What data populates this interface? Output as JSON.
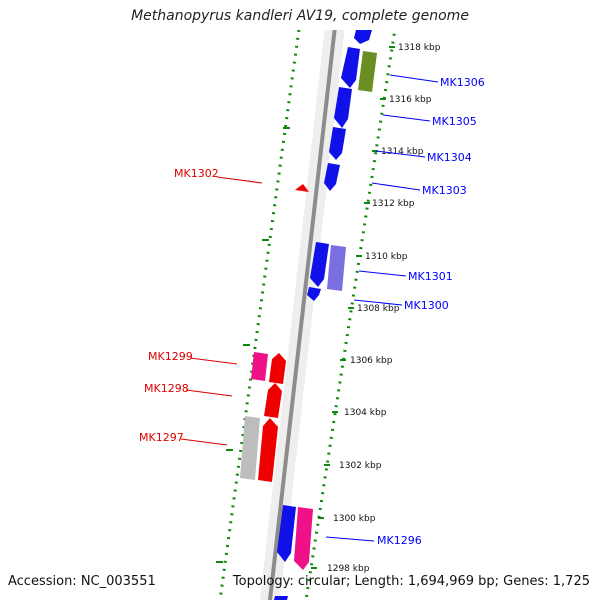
{
  "title": "Methanopyrus kandleri AV19, complete genome",
  "footer": {
    "accession": "Accession: NC_003551",
    "summary": "Topology: circular; Length: 1,694,969 bp; Genes: 1,725"
  },
  "ticks": [
    {
      "label": "1318 kbp",
      "kbp": 1318
    },
    {
      "label": "1316 kbp",
      "kbp": 1316
    },
    {
      "label": "1314 kbp",
      "kbp": 1314
    },
    {
      "label": "1312 kbp",
      "kbp": 1312
    },
    {
      "label": "1310 kbp",
      "kbp": 1310
    },
    {
      "label": "1308 kbp",
      "kbp": 1308
    },
    {
      "label": "1306 kbp",
      "kbp": 1306
    },
    {
      "label": "1304 kbp",
      "kbp": 1304
    },
    {
      "label": "1302 kbp",
      "kbp": 1302
    },
    {
      "label": "1300 kbp",
      "kbp": 1300
    },
    {
      "label": "1298 kbp",
      "kbp": 1298
    }
  ],
  "genes": [
    {
      "name": "MK1306",
      "color": "#0000ff"
    },
    {
      "name": "MK1305",
      "color": "#0000ff"
    },
    {
      "name": "MK1304",
      "color": "#0000ff"
    },
    {
      "name": "MK1303",
      "color": "#0000ff"
    },
    {
      "name": "MK1302",
      "color": "#dd0000"
    },
    {
      "name": "MK1301",
      "color": "#0000ff"
    },
    {
      "name": "MK1300",
      "color": "#0000ff"
    },
    {
      "name": "MK1299",
      "color": "#dd0000"
    },
    {
      "name": "MK1298",
      "color": "#dd0000"
    },
    {
      "name": "MK1297",
      "color": "#dd0000"
    },
    {
      "name": "MK1296",
      "color": "#0000ff"
    }
  ],
  "colors": {
    "backbone": "#8c8c8c",
    "track": "#ececec",
    "dots": "#118811",
    "forward_cds": "#1010e8",
    "reverse_cds": "#ee0000",
    "olive_feature": "#6b8e23",
    "pink_feature": "#ee1188",
    "lavender_feature": "#7a6ee0",
    "grey_feature": "#bdbdbd"
  }
}
